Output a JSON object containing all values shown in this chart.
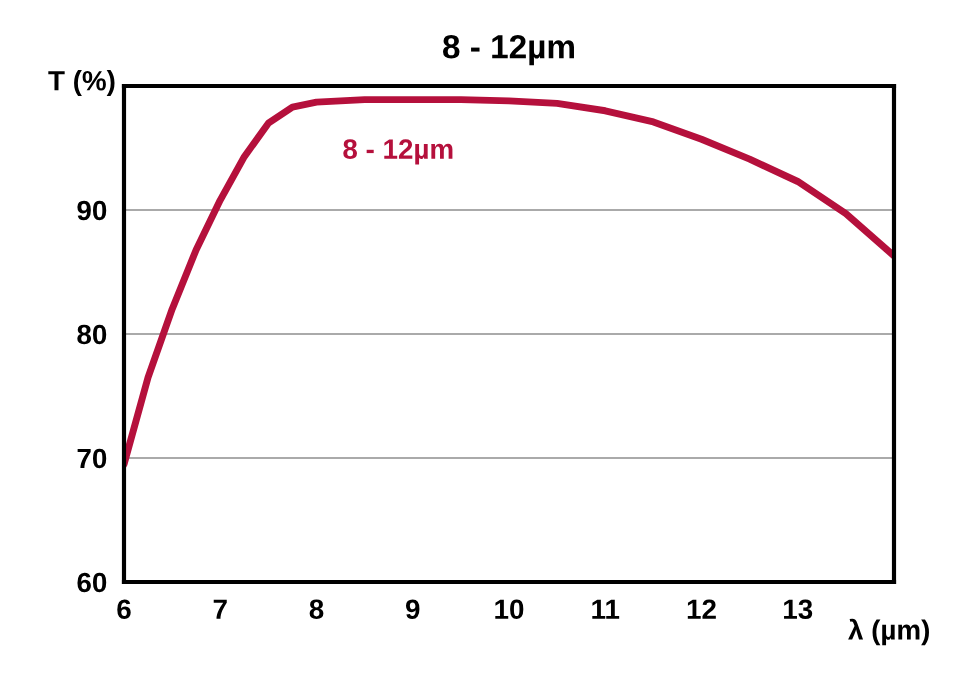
{
  "chart_data": {
    "type": "line",
    "title": "8 - 12µm",
    "xlabel": "λ (µm)",
    "ylabel": "T (%)",
    "series": [
      {
        "name": "8 - 12µm",
        "color": "#b5103c",
        "x": [
          6,
          6.25,
          6.5,
          6.75,
          7,
          7.25,
          7.5,
          7.75,
          8,
          8.5,
          9,
          9.5,
          10,
          10.5,
          11,
          11.5,
          12,
          12.5,
          13,
          13.5,
          14
        ],
        "values": [
          69.5,
          76.5,
          82,
          86.8,
          90.8,
          94.3,
          97,
          98.3,
          98.7,
          98.9,
          98.9,
          98.9,
          98.8,
          98.6,
          98,
          97.1,
          95.7,
          94.1,
          92.3,
          89.7,
          86.3
        ]
      }
    ],
    "xlim": [
      6,
      14
    ],
    "xticks": [
      6,
      7,
      8,
      9,
      10,
      11,
      12,
      13
    ],
    "ylim": [
      60,
      100
    ],
    "yticks": [
      60,
      70,
      80,
      90
    ],
    "grid": "y",
    "legend": false,
    "marker": "none",
    "line_style": "solid"
  }
}
